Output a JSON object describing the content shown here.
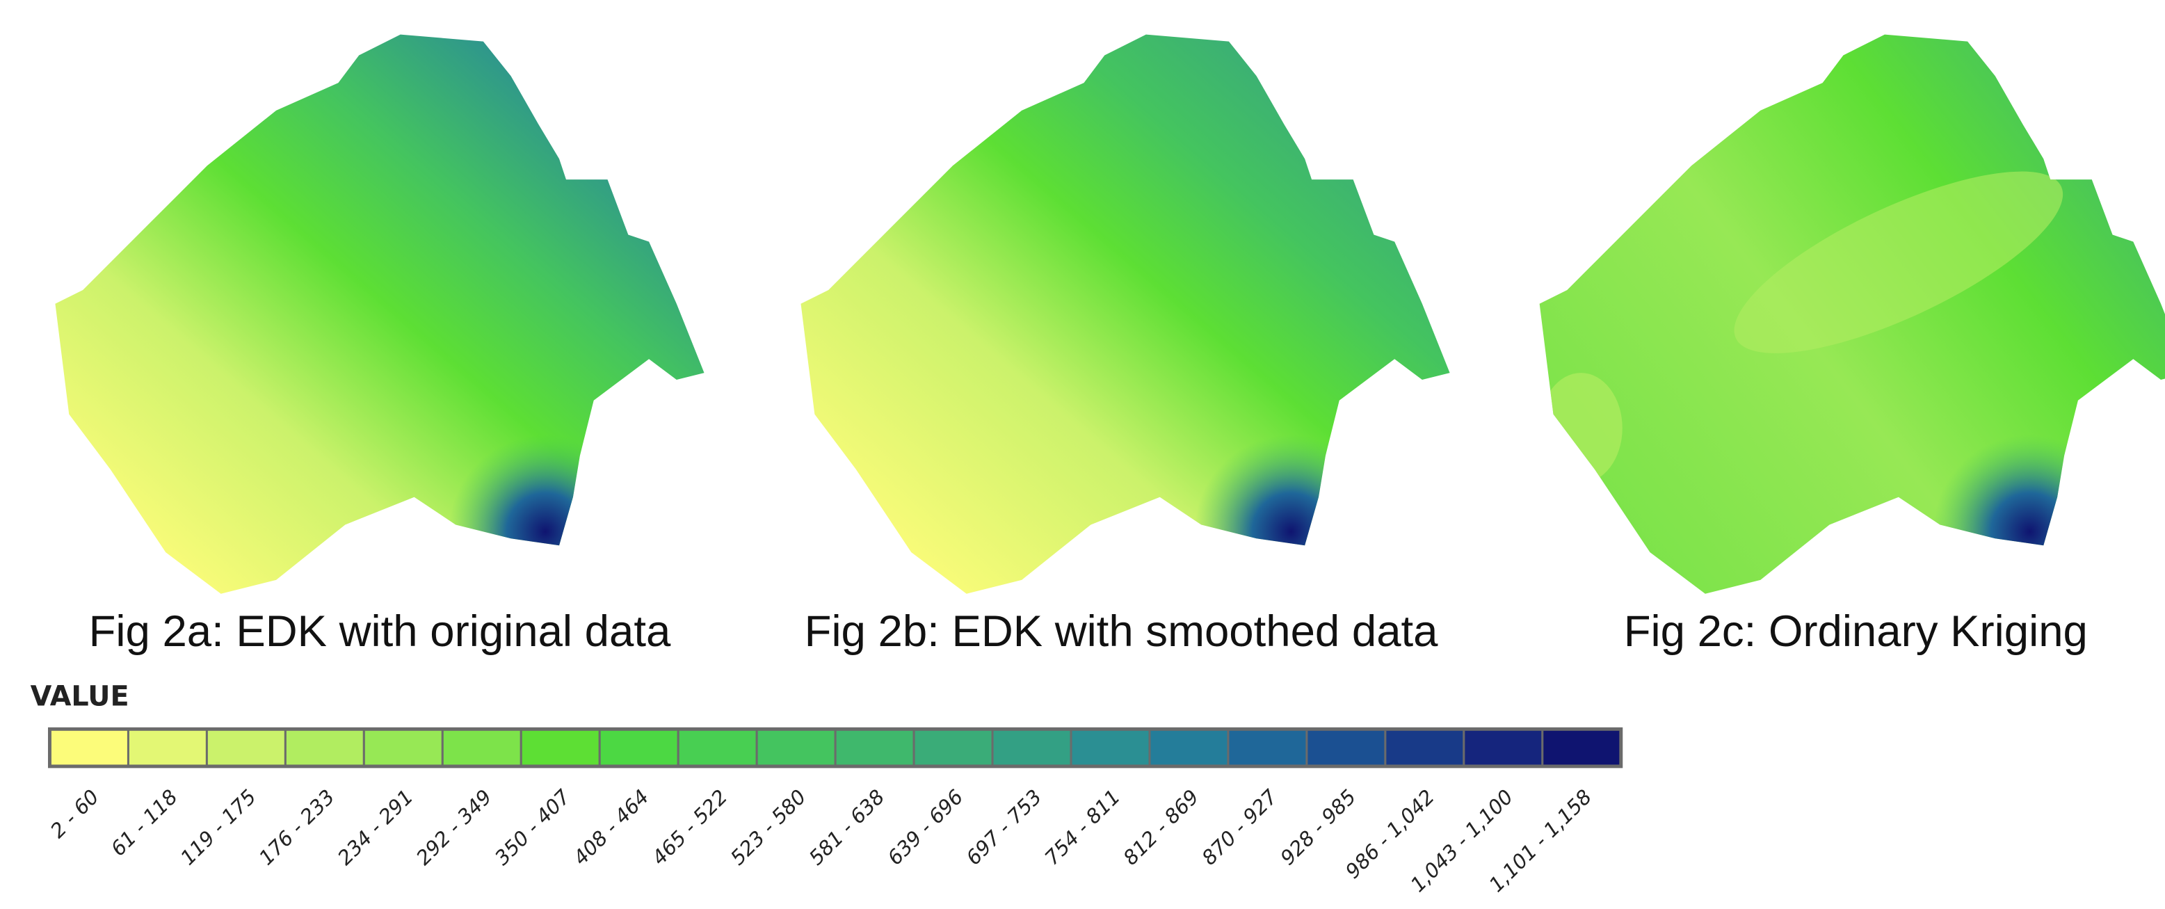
{
  "figures": [
    {
      "caption": "Fig 2a: EDK with original data"
    },
    {
      "caption": "Fig 2b: EDK with smoothed data"
    },
    {
      "caption": "Fig 2c: Ordinary Kriging"
    }
  ],
  "legend": {
    "title": "VALUE",
    "items": [
      {
        "label": "2 - 60",
        "color": "#fcfc7a"
      },
      {
        "label": "61 - 118",
        "color": "#e3f774"
      },
      {
        "label": "119 - 175",
        "color": "#cbf26b"
      },
      {
        "label": "176 - 233",
        "color": "#b1ed60"
      },
      {
        "label": "234 - 291",
        "color": "#97e855"
      },
      {
        "label": "292 - 349",
        "color": "#7de34a"
      },
      {
        "label": "350 - 407",
        "color": "#5ddf34"
      },
      {
        "label": "408 - 464",
        "color": "#4cd843"
      },
      {
        "label": "465 - 522",
        "color": "#48cf52"
      },
      {
        "label": "523 - 580",
        "color": "#44c45f"
      },
      {
        "label": "581 - 638",
        "color": "#3fb86c"
      },
      {
        "label": "639 - 696",
        "color": "#3aac78"
      },
      {
        "label": "697 - 753",
        "color": "#33a084"
      },
      {
        "label": "754 - 811",
        "color": "#2b8f93"
      },
      {
        "label": "812 - 869",
        "color": "#247d9a"
      },
      {
        "label": "870 - 927",
        "color": "#1f6799"
      },
      {
        "label": "928 - 985",
        "color": "#1b5092"
      },
      {
        "label": "986 - 1,042",
        "color": "#183a88"
      },
      {
        "label": "1,043 - 1,100",
        "color": "#15257d"
      },
      {
        "label": "1,101 - 1,158",
        "color": "#0f1470"
      }
    ]
  }
}
